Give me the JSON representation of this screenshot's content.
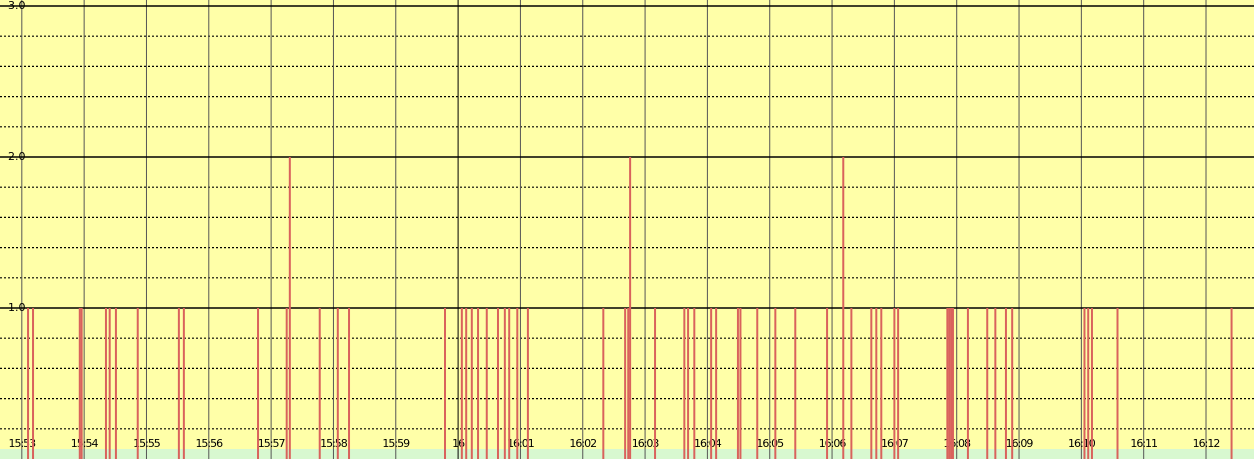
{
  "chart_data": {
    "type": "bar",
    "color": "#d9625c",
    "ylim": [
      0,
      3
    ],
    "yticks": [
      {
        "value": 1,
        "label": "1.0"
      },
      {
        "value": 2,
        "label": "2.0"
      },
      {
        "value": 3,
        "label": "3.0"
      }
    ],
    "yminor": [
      0.2,
      0.4,
      0.6,
      0.8,
      1.2,
      1.4,
      1.6,
      1.8,
      2.2,
      2.4,
      2.6,
      2.8
    ],
    "xlim": [
      952.65,
      972.77
    ],
    "xticks": [
      {
        "value": 953,
        "label": "15:53"
      },
      {
        "value": 954,
        "label": "15:54"
      },
      {
        "value": 955,
        "label": "15:55"
      },
      {
        "value": 956,
        "label": "15:56"
      },
      {
        "value": 957,
        "label": "15:57"
      },
      {
        "value": 958,
        "label": "15:58"
      },
      {
        "value": 959,
        "label": "15:59"
      },
      {
        "value": 960,
        "label": "16"
      },
      {
        "value": 961,
        "label": "16:01"
      },
      {
        "value": 962,
        "label": "16:02"
      },
      {
        "value": 963,
        "label": "16:03"
      },
      {
        "value": 964,
        "label": "16:04"
      },
      {
        "value": 965,
        "label": "16:05"
      },
      {
        "value": 966,
        "label": "16:06"
      },
      {
        "value": 967,
        "label": "16:07"
      },
      {
        "value": 968,
        "label": "16:08"
      },
      {
        "value": 969,
        "label": "16:09"
      },
      {
        "value": 970,
        "label": "16:10"
      },
      {
        "value": 971,
        "label": "16:11"
      },
      {
        "value": 972,
        "label": "16:12"
      }
    ],
    "grid": true,
    "x": [
      953.1,
      953.18,
      953.93,
      953.96,
      954.35,
      954.41,
      954.51,
      954.86,
      955.52,
      955.6,
      956.79,
      957.25,
      957.3,
      957.78,
      958.07,
      958.25,
      959.79,
      960.06,
      960.13,
      960.22,
      960.32,
      960.46,
      960.64,
      960.75,
      960.82,
      960.95,
      961.12,
      962.33,
      962.68,
      962.73,
      962.76,
      963.16,
      963.63,
      963.69,
      963.79,
      964.06,
      964.14,
      964.49,
      964.53,
      964.8,
      965.09,
      965.41,
      965.92,
      966.18,
      966.31,
      966.63,
      966.71,
      966.79,
      967.0,
      967.06,
      967.85,
      967.88,
      967.91,
      967.94,
      968.18,
      968.49,
      968.62,
      968.79,
      968.89,
      970.05,
      970.11,
      970.17,
      970.58,
      972.41
    ],
    "values": [
      1,
      1,
      1,
      1,
      1,
      1,
      1,
      1,
      1,
      1,
      1,
      1,
      2,
      1,
      1,
      1,
      1,
      1,
      1,
      1,
      1,
      1,
      1,
      1,
      1,
      1,
      1,
      1,
      1,
      1,
      2,
      1,
      1,
      1,
      1,
      1,
      1,
      1,
      1,
      1,
      1,
      1,
      1,
      2,
      1,
      1,
      1,
      1,
      1,
      1,
      1,
      1,
      1,
      1,
      1,
      1,
      1,
      1,
      1,
      1,
      1,
      1,
      1,
      1
    ]
  }
}
